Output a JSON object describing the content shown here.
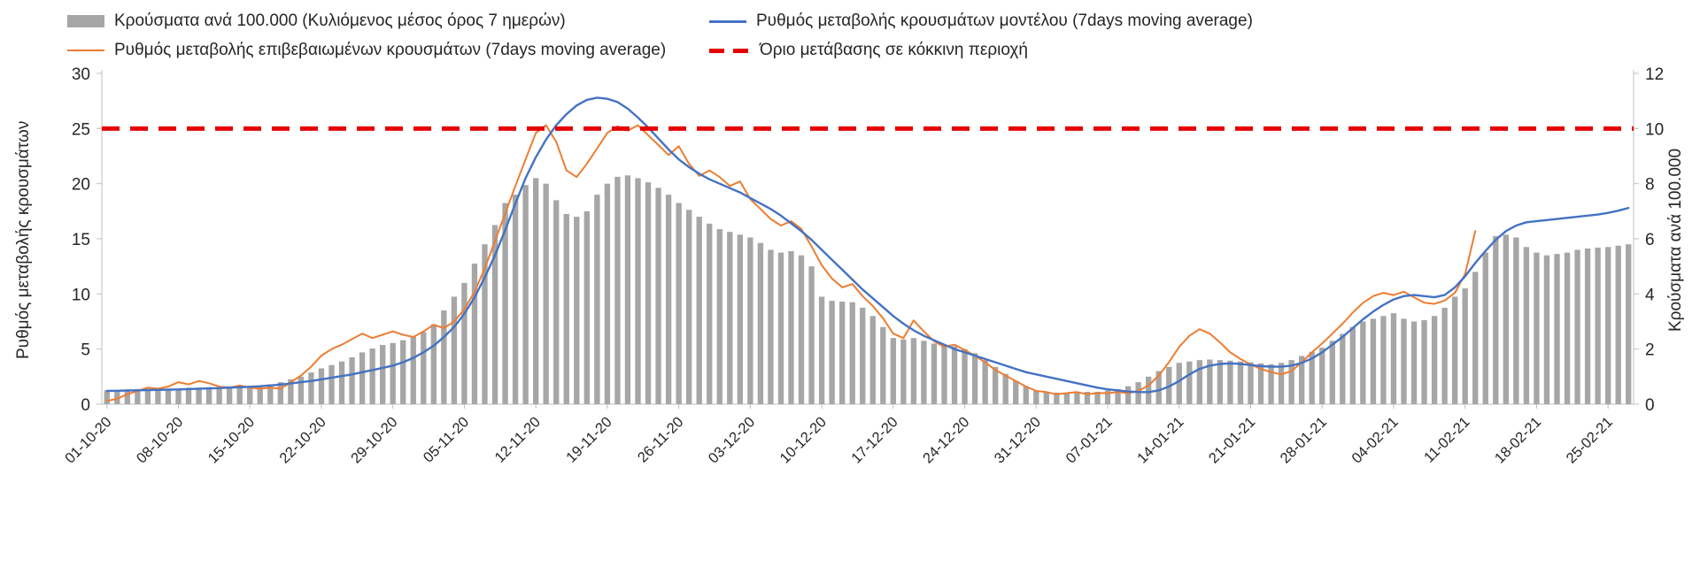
{
  "legend": {
    "bars": "Κρούσματα ανά 100.000 (Κυλιόμενος μέσος όρος 7 ημερών)",
    "model_line": "Ρυθμός μεταβολής κρουσμάτων μοντέλου (7days moving average)",
    "confirmed_line": "Ρυθμός μεταβολής επιβεβαιωμένων κρουσμάτων (7days moving average)",
    "threshold": "Όριο μετάβασης σε κόκκινη περιοχή"
  },
  "colors": {
    "bars": "#a6a6a6",
    "model_line": "#4472c4",
    "confirmed_line": "#ed7d31",
    "threshold": "#e60000",
    "axis": "#bfbfbf",
    "text": "#262626"
  },
  "chart_data": {
    "type": "combo",
    "x_tick_step": 7,
    "x_tick_labels": [
      "01-10-20",
      "08-10-20",
      "15-10-20",
      "22-10-20",
      "29-10-20",
      "05-11-20",
      "12-11-20",
      "19-11-20",
      "26-11-20",
      "03-12-20",
      "10-12-20",
      "17-12-20",
      "24-12-20",
      "31-12-20",
      "07-01-21",
      "14-01-21",
      "21-01-21",
      "28-01-21",
      "04-02-21",
      "11-02-21",
      "18-02-21",
      "25-02-21"
    ],
    "left_axis": {
      "title": "Ρυθμός μεταβολής κρουσμάτων",
      "min": 0,
      "max": 30,
      "ticks": [
        0,
        5,
        10,
        15,
        20,
        25,
        30
      ]
    },
    "right_axis": {
      "title": "Κρούσματα ανά 100.000",
      "min": 0,
      "max": 12,
      "ticks": [
        0,
        2,
        4,
        6,
        8,
        10,
        12
      ]
    },
    "series": [
      {
        "name": "Κρούσματα ανά 100.000 (Κυλιόμενος μέσος όρος 7 ημερών)",
        "type": "bar",
        "axis": "right",
        "color": "#a6a6a6",
        "values": [
          0.5,
          0.5,
          0.52,
          0.55,
          0.55,
          0.52,
          0.55,
          0.56,
          0.6,
          0.6,
          0.62,
          0.62,
          0.65,
          0.62,
          0.62,
          0.66,
          0.72,
          0.8,
          0.9,
          1.0,
          1.15,
          1.3,
          1.42,
          1.55,
          1.7,
          1.88,
          2.02,
          2.15,
          2.22,
          2.32,
          2.45,
          2.62,
          2.9,
          3.4,
          3.9,
          4.4,
          5.1,
          5.8,
          6.5,
          7.3,
          7.6,
          7.95,
          8.2,
          8.0,
          7.4,
          6.9,
          6.8,
          7.0,
          7.6,
          8.0,
          8.25,
          8.3,
          8.2,
          8.05,
          7.85,
          7.6,
          7.3,
          7.05,
          6.8,
          6.55,
          6.35,
          6.25,
          6.15,
          6.05,
          5.85,
          5.6,
          5.5,
          5.55,
          5.4,
          5.0,
          3.9,
          3.75,
          3.72,
          3.7,
          3.5,
          3.2,
          2.8,
          2.4,
          2.35,
          2.4,
          2.3,
          2.2,
          2.15,
          2.1,
          2.0,
          1.85,
          1.6,
          1.35,
          1.1,
          0.85,
          0.65,
          0.5,
          0.45,
          0.42,
          0.4,
          0.42,
          0.45,
          0.45,
          0.5,
          0.55,
          0.65,
          0.8,
          1.0,
          1.2,
          1.35,
          1.5,
          1.55,
          1.6,
          1.62,
          1.6,
          1.58,
          1.55,
          1.52,
          1.48,
          1.45,
          1.5,
          1.6,
          1.75,
          1.9,
          2.05,
          2.3,
          2.55,
          2.8,
          3.0,
          3.1,
          3.2,
          3.3,
          3.1,
          3.0,
          3.05,
          3.2,
          3.5,
          3.9,
          4.2,
          4.8,
          5.5,
          6.1,
          6.15,
          6.05,
          5.7,
          5.5,
          5.4,
          5.45,
          5.5,
          5.6,
          5.65,
          5.68,
          5.7,
          5.75,
          5.8
        ]
      },
      {
        "name": "Ρυθμός μεταβολής κρουσμάτων μοντέλου (7days moving average)",
        "type": "line",
        "axis": "left",
        "color": "#4472c4",
        "width": 2.4,
        "values": [
          1.2,
          1.22,
          1.24,
          1.26,
          1.28,
          1.3,
          1.32,
          1.34,
          1.37,
          1.4,
          1.43,
          1.46,
          1.5,
          1.54,
          1.58,
          1.63,
          1.7,
          1.78,
          1.88,
          2.0,
          2.1,
          2.25,
          2.4,
          2.55,
          2.7,
          2.9,
          3.1,
          3.3,
          3.5,
          3.8,
          4.2,
          4.7,
          5.3,
          6.1,
          7.0,
          8.2,
          9.7,
          11.5,
          13.5,
          15.8,
          18.2,
          20.5,
          22.4,
          24.0,
          25.3,
          26.3,
          27.1,
          27.6,
          27.8,
          27.7,
          27.4,
          26.8,
          26.0,
          25.1,
          24.1,
          23.1,
          22.2,
          21.5,
          20.9,
          20.4,
          20.0,
          19.6,
          19.2,
          18.7,
          18.2,
          17.7,
          17.1,
          16.4,
          15.7,
          14.9,
          14.0,
          13.1,
          12.2,
          11.3,
          10.4,
          9.6,
          8.8,
          8.0,
          7.3,
          6.7,
          6.2,
          5.8,
          5.4,
          5.0,
          4.7,
          4.4,
          4.1,
          3.8,
          3.5,
          3.2,
          2.9,
          2.7,
          2.5,
          2.3,
          2.1,
          1.9,
          1.7,
          1.5,
          1.35,
          1.25,
          1.15,
          1.1,
          1.1,
          1.25,
          1.6,
          2.1,
          2.7,
          3.2,
          3.5,
          3.65,
          3.7,
          3.65,
          3.55,
          3.45,
          3.4,
          3.4,
          3.5,
          3.75,
          4.15,
          4.7,
          5.4,
          6.1,
          6.9,
          7.7,
          8.4,
          9.0,
          9.5,
          9.8,
          9.9,
          9.8,
          9.7,
          9.9,
          10.6,
          11.6,
          12.8,
          13.9,
          14.9,
          15.7,
          16.2,
          16.5,
          16.6,
          16.7,
          16.8,
          16.9,
          17.0,
          17.1,
          17.2,
          17.35,
          17.55,
          17.8
        ]
      },
      {
        "name": "Ρυθμός μεταβολής επιβεβαιωμένων κρουσμάτων (7days moving average)",
        "type": "line",
        "axis": "left",
        "color": "#ed7d31",
        "width": 2,
        "values": [
          0.3,
          0.5,
          0.9,
          1.2,
          1.5,
          1.4,
          1.6,
          2.0,
          1.8,
          2.1,
          1.9,
          1.6,
          1.5,
          1.7,
          1.5,
          1.4,
          1.5,
          1.4,
          2.0,
          2.6,
          3.4,
          4.4,
          5.0,
          5.4,
          5.9,
          6.4,
          6.0,
          6.3,
          6.6,
          6.3,
          6.1,
          6.6,
          7.2,
          6.9,
          7.5,
          8.6,
          10.2,
          12.3,
          14.8,
          17.3,
          19.8,
          22.2,
          24.6,
          25.3,
          23.8,
          21.2,
          20.6,
          21.8,
          23.2,
          24.6,
          25.2,
          24.8,
          25.3,
          24.4,
          23.5,
          22.6,
          23.4,
          21.8,
          20.7,
          21.2,
          20.6,
          19.8,
          20.2,
          18.6,
          17.7,
          16.8,
          16.2,
          16.6,
          15.9,
          14.3,
          12.6,
          11.4,
          10.6,
          10.9,
          9.8,
          8.9,
          7.8,
          6.4,
          6.0,
          7.6,
          6.6,
          5.7,
          5.2,
          5.4,
          4.9,
          4.4,
          3.8,
          3.1,
          2.6,
          2.1,
          1.6,
          1.2,
          1.1,
          0.9,
          1.0,
          1.1,
          0.9,
          1.0,
          1.0,
          1.1,
          1.0,
          1.2,
          1.7,
          2.6,
          3.8,
          5.2,
          6.2,
          6.8,
          6.4,
          5.6,
          4.7,
          4.1,
          3.6,
          3.2,
          2.9,
          2.7,
          3.0,
          3.8,
          4.7,
          5.5,
          6.4,
          7.3,
          8.3,
          9.2,
          9.8,
          10.1,
          9.9,
          10.2,
          9.7,
          9.2,
          9.1,
          9.4,
          10.1,
          11.8,
          15.7,
          null,
          null,
          null,
          null,
          null,
          null,
          null,
          null,
          null,
          null,
          null,
          null,
          null,
          null,
          null
        ]
      },
      {
        "name": "Όριο μετάβασης σε κόκκινη περιοχή",
        "type": "threshold",
        "axis": "left",
        "color": "#e60000",
        "value": 25
      }
    ]
  }
}
